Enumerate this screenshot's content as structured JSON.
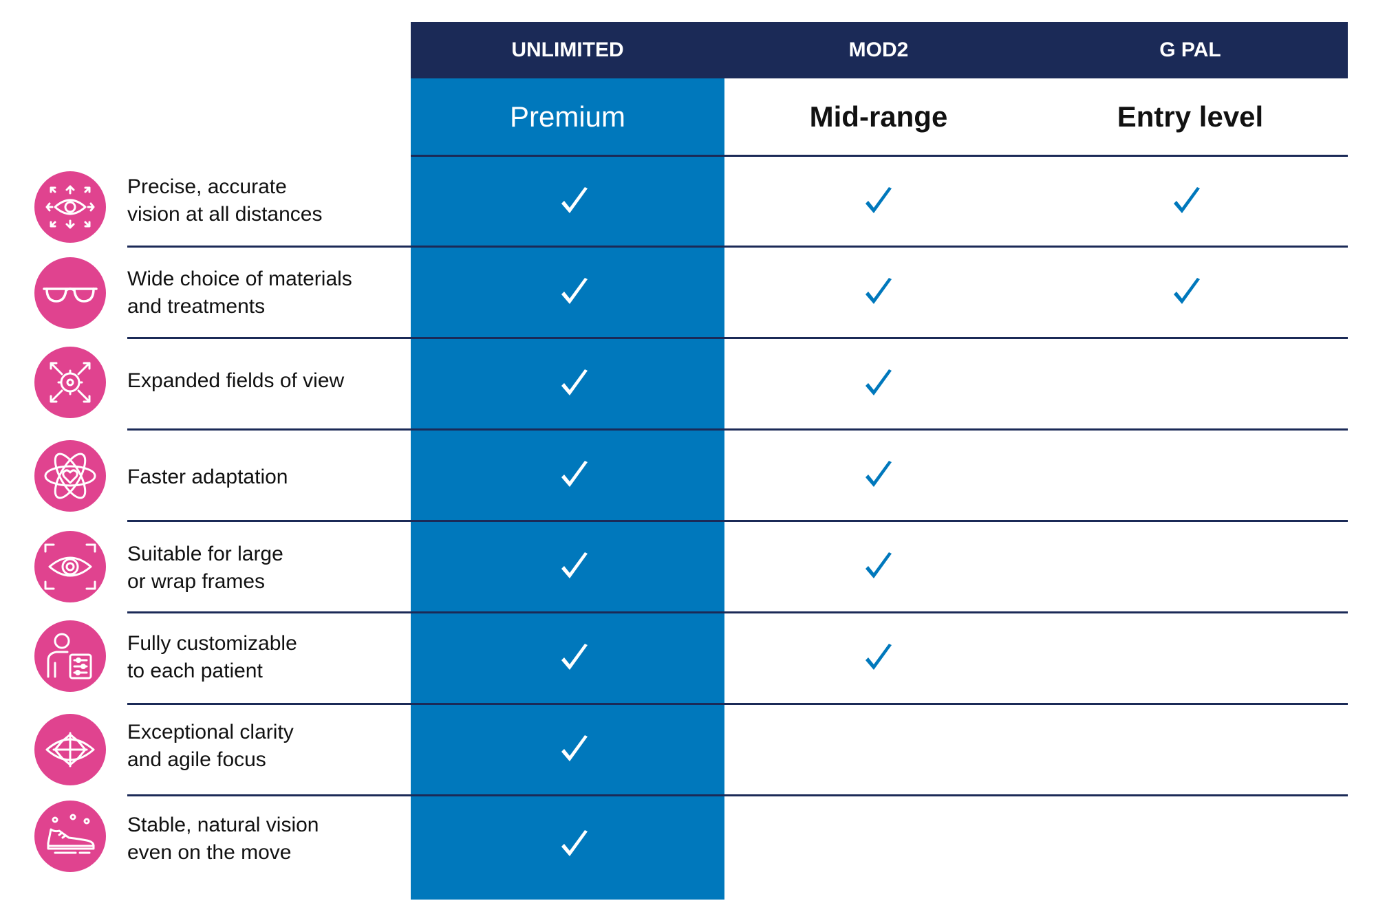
{
  "columns": [
    {
      "name": "UNLIMITED",
      "tier": "Premium"
    },
    {
      "name": "MOD2",
      "tier": "Mid-range"
    },
    {
      "name": "G PAL",
      "tier": "Entry level"
    }
  ],
  "features": [
    {
      "label": "Precise, accurate\nvision at all distances",
      "icon": "eye-arrows-icon",
      "checks": [
        true,
        true,
        true
      ]
    },
    {
      "label": "Wide choice of materials\nand treatments",
      "icon": "glasses-icon",
      "checks": [
        true,
        true,
        true
      ]
    },
    {
      "label": "Expanded fields of view",
      "icon": "target-expand-icon",
      "checks": [
        true,
        true,
        false
      ]
    },
    {
      "label": "Faster adaptation",
      "icon": "atom-heart-icon",
      "checks": [
        true,
        true,
        false
      ]
    },
    {
      "label": "Suitable for large\nor wrap frames",
      "icon": "eye-frame-icon",
      "checks": [
        true,
        true,
        false
      ]
    },
    {
      "label": "Fully customizable\nto each patient",
      "icon": "person-settings-icon",
      "checks": [
        true,
        true,
        false
      ]
    },
    {
      "label": "Exceptional clarity\nand agile focus",
      "icon": "eye-focus-icon",
      "checks": [
        true,
        false,
        false
      ]
    },
    {
      "label": "Stable, natural vision\neven on the move",
      "icon": "sneaker-icon",
      "checks": [
        true,
        false,
        false
      ]
    }
  ],
  "colors": {
    "header": "#1b2a57",
    "premium": "#0078bc",
    "icon_bg": "#e0438f",
    "check_on_premium": "#ffffff",
    "check_other": "#0078bc"
  }
}
